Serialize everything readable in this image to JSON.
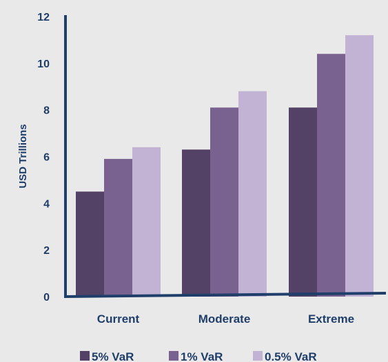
{
  "chart_data": {
    "type": "bar",
    "ylabel": "USD Trillions",
    "xlabel": "",
    "ylim": [
      0,
      12
    ],
    "yticks": [
      0,
      2,
      4,
      6,
      8,
      10,
      12
    ],
    "grid": false,
    "legend_position": "bottom",
    "categories": [
      "Current",
      "Moderate",
      "Extreme"
    ],
    "series": [
      {
        "name": "5% VaR",
        "color": "#534265",
        "values": [
          4.5,
          6.3,
          8.1
        ]
      },
      {
        "name": "1% VaR",
        "color": "#7a6290",
        "values": [
          5.9,
          8.1,
          10.4
        ]
      },
      {
        "name": "0.5% VaR",
        "color": "#c2b3d5",
        "values": [
          6.4,
          8.8,
          11.2
        ]
      }
    ],
    "axis_color": "#1f3e6a"
  }
}
